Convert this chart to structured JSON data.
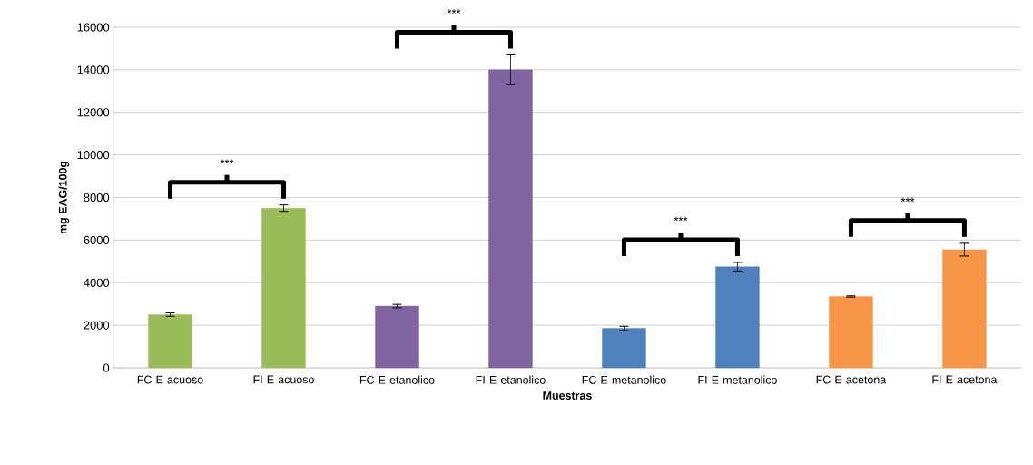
{
  "chart_data": {
    "type": "bar",
    "xlabel": "Muestras",
    "ylabel": "mg EAG/100g",
    "categories": [
      "FC E acuoso",
      "FI E acuoso",
      "FC E etanolico",
      "FI E etanolico",
      "FC E metanolico",
      "FI E metanolico",
      "FC E acetona",
      "FI E acetona"
    ],
    "values": [
      2500,
      7500,
      2900,
      14000,
      1850,
      4750,
      3350,
      5550
    ],
    "errors": [
      80,
      150,
      80,
      700,
      100,
      200,
      30,
      300
    ],
    "colors": [
      "#9bbb59",
      "#9bbb59",
      "#8064a2",
      "#8064a2",
      "#4f81bd",
      "#4f81bd",
      "#f79646",
      "#f79646"
    ],
    "ylim": [
      0,
      16000
    ],
    "yticks": [
      0,
      2000,
      4000,
      6000,
      8000,
      10000,
      12000,
      14000,
      16000
    ],
    "grid": "y",
    "annotations": [
      "***",
      "***",
      "***",
      "***"
    ]
  }
}
